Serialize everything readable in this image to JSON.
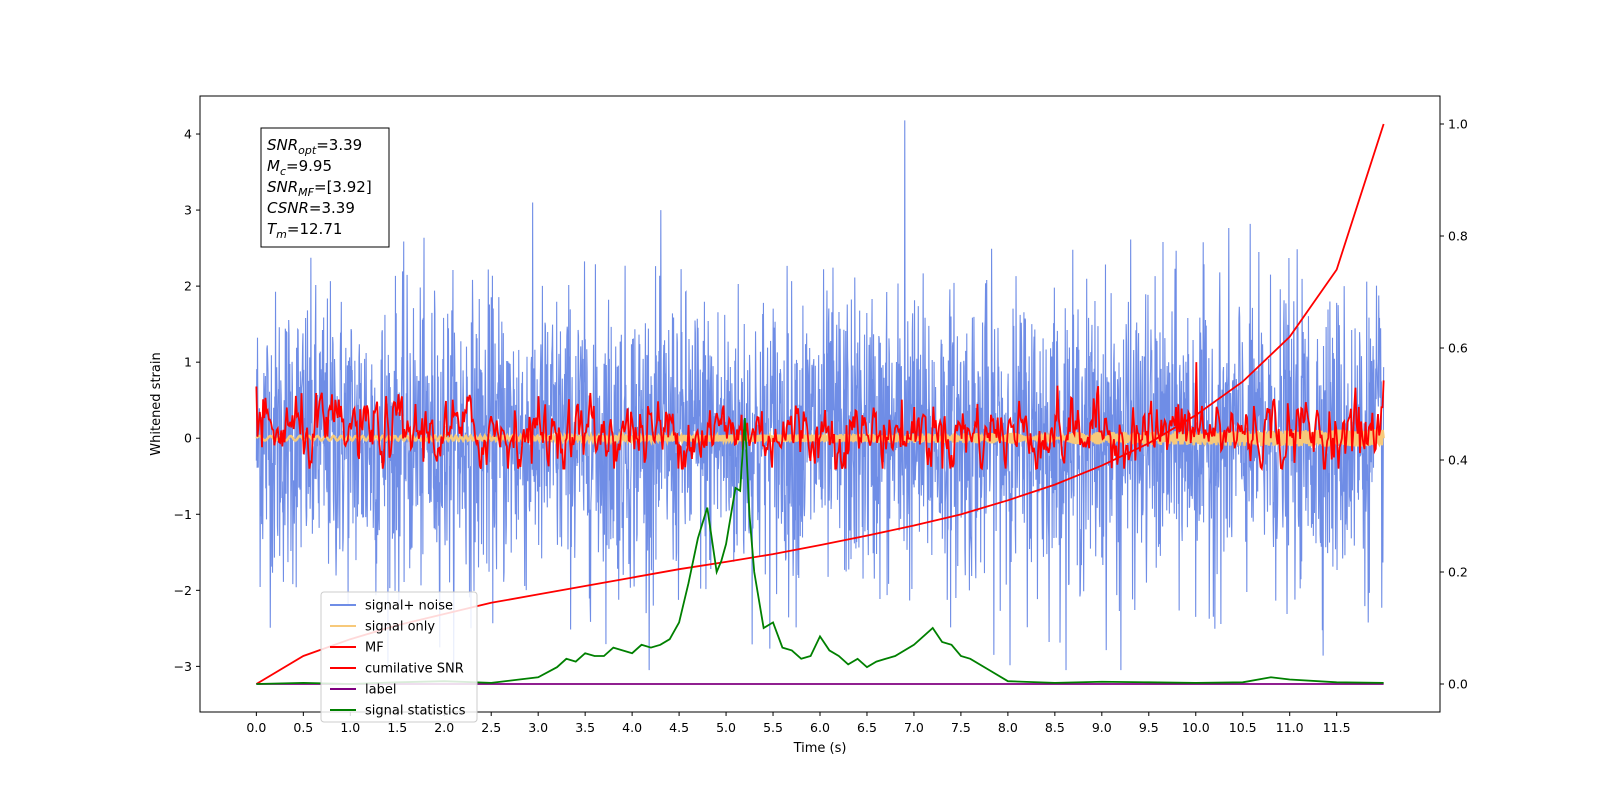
{
  "chart_data": {
    "type": "line",
    "title": "",
    "xlabel": "Time (s)",
    "ylabel": "Whitened strain",
    "y2label": "",
    "xlim": [
      -0.6,
      12.6
    ],
    "ylim": [
      -3.6,
      4.5
    ],
    "y2lim": [
      -0.05,
      1.05
    ],
    "xticks": [
      0.0,
      0.5,
      1.0,
      1.5,
      2.0,
      2.5,
      3.0,
      3.5,
      4.0,
      4.5,
      5.0,
      5.5,
      6.0,
      6.5,
      7.0,
      7.5,
      8.0,
      8.5,
      9.0,
      9.5,
      10.0,
      10.5,
      11.0,
      11.5
    ],
    "xtick_labels": [
      "0.0",
      "0.5",
      "1.0",
      "1.5",
      "2.0",
      "2.5",
      "3.0",
      "3.5",
      "4.0",
      "4.5",
      "5.0",
      "5.5",
      "6.0",
      "6.5",
      "7.0",
      "7.5",
      "8.0",
      "8.5",
      "9.0",
      "9.5",
      "10.0",
      "10.5",
      "11.0",
      "11.5"
    ],
    "yticks": [
      -3,
      -2,
      -1,
      0,
      1,
      2,
      3,
      4
    ],
    "ytick_labels": [
      "−3",
      "−2",
      "−1",
      "0",
      "1",
      "2",
      "3",
      "4"
    ],
    "y2ticks": [
      0.0,
      0.2,
      0.4,
      0.6,
      0.8,
      1.0
    ],
    "y2tick_labels": [
      "0.0",
      "0.2",
      "0.4",
      "0.6",
      "0.8",
      "1.0"
    ],
    "grid": false,
    "legend_position": "bottom-left",
    "series": [
      {
        "name": "signal+ noise",
        "axis": "left",
        "color": "#6f8de6",
        "generated": true,
        "x_range": [
          0.0,
          12.0
        ],
        "amplitude_std": 1.0,
        "max_value": 4.18,
        "min_value": -3.05
      },
      {
        "name": "signal only",
        "axis": "left",
        "color": "#f7c97a",
        "generated": true,
        "x_range": [
          0.0,
          12.0
        ],
        "amplitude_start": 0.03,
        "amplitude_end": 0.12
      },
      {
        "name": "MF",
        "axis": "left",
        "color": "#ff0000",
        "generated": true,
        "x_range": [
          0.0,
          12.0
        ],
        "baseline": 0.0,
        "range": [
          -0.4,
          1.0
        ],
        "start_value": 0.68,
        "end_value": 0.76,
        "peak": [
          10.0,
          1.0
        ]
      },
      {
        "name": "cumilative SNR",
        "axis": "right",
        "color": "#ff0000",
        "x": [
          0.0,
          0.5,
          1.0,
          1.5,
          2.0,
          2.5,
          3.0,
          3.5,
          4.0,
          4.5,
          5.0,
          5.5,
          6.0,
          6.5,
          7.0,
          7.5,
          8.0,
          8.5,
          9.0,
          9.5,
          10.0,
          10.5,
          11.0,
          11.5,
          12.0
        ],
        "values": [
          0.0,
          0.05,
          0.08,
          0.105,
          0.125,
          0.145,
          0.16,
          0.175,
          0.19,
          0.205,
          0.218,
          0.232,
          0.248,
          0.265,
          0.283,
          0.303,
          0.328,
          0.356,
          0.39,
          0.43,
          0.48,
          0.54,
          0.62,
          0.74,
          1.0
        ]
      },
      {
        "name": "label",
        "axis": "right",
        "color": "#800080",
        "x": [
          0.0,
          12.0
        ],
        "values": [
          0.0,
          0.0
        ]
      },
      {
        "name": "signal statistics",
        "axis": "right",
        "color": "#008000",
        "x": [
          0.0,
          0.5,
          1.0,
          1.5,
          2.0,
          2.5,
          2.8,
          3.0,
          3.2,
          3.3,
          3.4,
          3.5,
          3.6,
          3.7,
          3.8,
          4.0,
          4.1,
          4.2,
          4.3,
          4.4,
          4.5,
          4.6,
          4.7,
          4.8,
          4.9,
          4.95,
          5.0,
          5.1,
          5.15,
          5.2,
          5.25,
          5.3,
          5.4,
          5.5,
          5.6,
          5.7,
          5.8,
          5.9,
          6.0,
          6.1,
          6.2,
          6.3,
          6.4,
          6.5,
          6.6,
          6.7,
          6.8,
          7.0,
          7.2,
          7.3,
          7.4,
          7.5,
          7.6,
          7.8,
          8.0,
          8.5,
          9.0,
          9.5,
          10.0,
          10.5,
          10.8,
          11.0,
          11.5,
          12.0
        ],
        "values": [
          0.0,
          0.002,
          0.0,
          0.003,
          0.005,
          0.002,
          0.008,
          0.012,
          0.03,
          0.045,
          0.04,
          0.055,
          0.05,
          0.05,
          0.065,
          0.055,
          0.07,
          0.065,
          0.07,
          0.08,
          0.11,
          0.18,
          0.26,
          0.315,
          0.2,
          0.22,
          0.25,
          0.35,
          0.345,
          0.475,
          0.3,
          0.2,
          0.1,
          0.11,
          0.065,
          0.06,
          0.045,
          0.05,
          0.085,
          0.06,
          0.05,
          0.035,
          0.045,
          0.03,
          0.04,
          0.045,
          0.05,
          0.07,
          0.1,
          0.075,
          0.07,
          0.05,
          0.045,
          0.025,
          0.005,
          0.002,
          0.004,
          0.003,
          0.002,
          0.003,
          0.012,
          0.008,
          0.003,
          0.002
        ]
      }
    ],
    "annotation": {
      "lines": [
        {
          "var": "SNR",
          "sub": "opt",
          "value": "=3.39"
        },
        {
          "var": "M",
          "sub": "c",
          "value": "=9.95"
        },
        {
          "var": "SNR",
          "sub": "MF",
          "value": "=[3.92]"
        },
        {
          "var": "CSNR",
          "sub": "",
          "value": "=3.39"
        },
        {
          "var": "T",
          "sub": "m",
          "value": "=12.71"
        }
      ]
    }
  }
}
